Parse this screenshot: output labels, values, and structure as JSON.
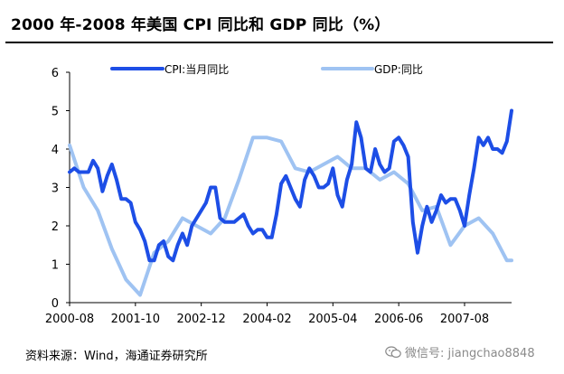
{
  "header": {
    "title": "2000 年-2008 年美国 CPI 同比和 GDP 同比（%）"
  },
  "footer": {
    "source": "资料来源：Wind，海通证券研究所",
    "watermark_text": "微信号: jiangchao8848",
    "watermark_icon": "wechat-icon"
  },
  "chart_data": {
    "type": "line",
    "x_ticks": [
      "2000-08",
      "2001-10",
      "2002-12",
      "2004-02",
      "2005-04",
      "2006-06",
      "2007-08"
    ],
    "y_ticks": [
      "0",
      "1",
      "2",
      "3",
      "4",
      "5",
      "6"
    ],
    "ylim": [
      0,
      6
    ],
    "x_start": "2000-08",
    "x_end": "2008-06",
    "grid": false,
    "legend_position": "top",
    "series": [
      {
        "name": "CPI:当月同比",
        "color": "#1d4ee6",
        "points": [
          [
            "2000-08",
            3.4
          ],
          [
            "2000-09",
            3.5
          ],
          [
            "2000-10",
            3.4
          ],
          [
            "2000-11",
            3.4
          ],
          [
            "2000-12",
            3.4
          ],
          [
            "2001-01",
            3.7
          ],
          [
            "2001-02",
            3.5
          ],
          [
            "2001-03",
            2.9
          ],
          [
            "2001-04",
            3.3
          ],
          [
            "2001-05",
            3.6
          ],
          [
            "2001-06",
            3.2
          ],
          [
            "2001-07",
            2.7
          ],
          [
            "2001-08",
            2.7
          ],
          [
            "2001-09",
            2.6
          ],
          [
            "2001-10",
            2.1
          ],
          [
            "2001-11",
            1.9
          ],
          [
            "2001-12",
            1.6
          ],
          [
            "2002-01",
            1.1
          ],
          [
            "2002-02",
            1.1
          ],
          [
            "2002-03",
            1.5
          ],
          [
            "2002-04",
            1.6
          ],
          [
            "2002-05",
            1.2
          ],
          [
            "2002-06",
            1.1
          ],
          [
            "2002-07",
            1.5
          ],
          [
            "2002-08",
            1.8
          ],
          [
            "2002-09",
            1.5
          ],
          [
            "2002-10",
            2.0
          ],
          [
            "2002-11",
            2.2
          ],
          [
            "2002-12",
            2.4
          ],
          [
            "2003-01",
            2.6
          ],
          [
            "2003-02",
            3.0
          ],
          [
            "2003-03",
            3.0
          ],
          [
            "2003-04",
            2.2
          ],
          [
            "2003-05",
            2.1
          ],
          [
            "2003-06",
            2.1
          ],
          [
            "2003-07",
            2.1
          ],
          [
            "2003-08",
            2.2
          ],
          [
            "2003-09",
            2.3
          ],
          [
            "2003-10",
            2.0
          ],
          [
            "2003-11",
            1.8
          ],
          [
            "2003-12",
            1.9
          ],
          [
            "2004-01",
            1.9
          ],
          [
            "2004-02",
            1.7
          ],
          [
            "2004-03",
            1.7
          ],
          [
            "2004-04",
            2.3
          ],
          [
            "2004-05",
            3.1
          ],
          [
            "2004-06",
            3.3
          ],
          [
            "2004-07",
            3.0
          ],
          [
            "2004-08",
            2.7
          ],
          [
            "2004-09",
            2.5
          ],
          [
            "2004-10",
            3.2
          ],
          [
            "2004-11",
            3.5
          ],
          [
            "2004-12",
            3.3
          ],
          [
            "2005-01",
            3.0
          ],
          [
            "2005-02",
            3.0
          ],
          [
            "2005-03",
            3.1
          ],
          [
            "2005-04",
            3.5
          ],
          [
            "2005-05",
            2.8
          ],
          [
            "2005-06",
            2.5
          ],
          [
            "2005-07",
            3.2
          ],
          [
            "2005-08",
            3.6
          ],
          [
            "2005-09",
            4.7
          ],
          [
            "2005-10",
            4.3
          ],
          [
            "2005-11",
            3.5
          ],
          [
            "2005-12",
            3.4
          ],
          [
            "2006-01",
            4.0
          ],
          [
            "2006-02",
            3.6
          ],
          [
            "2006-03",
            3.4
          ],
          [
            "2006-04",
            3.5
          ],
          [
            "2006-05",
            4.2
          ],
          [
            "2006-06",
            4.3
          ],
          [
            "2006-07",
            4.1
          ],
          [
            "2006-08",
            3.8
          ],
          [
            "2006-09",
            2.1
          ],
          [
            "2006-10",
            1.3
          ],
          [
            "2006-11",
            2.0
          ],
          [
            "2006-12",
            2.5
          ],
          [
            "2007-01",
            2.1
          ],
          [
            "2007-02",
            2.4
          ],
          [
            "2007-03",
            2.8
          ],
          [
            "2007-04",
            2.6
          ],
          [
            "2007-05",
            2.7
          ],
          [
            "2007-06",
            2.7
          ],
          [
            "2007-07",
            2.4
          ],
          [
            "2007-08",
            2.0
          ],
          [
            "2007-09",
            2.8
          ],
          [
            "2007-10",
            3.5
          ],
          [
            "2007-11",
            4.3
          ],
          [
            "2007-12",
            4.1
          ],
          [
            "2008-01",
            4.3
          ],
          [
            "2008-02",
            4.0
          ],
          [
            "2008-03",
            4.0
          ],
          [
            "2008-04",
            3.9
          ],
          [
            "2008-05",
            4.2
          ],
          [
            "2008-06",
            5.0
          ]
        ]
      },
      {
        "name": "GDP:同比",
        "color": "#9fc3f2",
        "points": [
          [
            "2000-08",
            4.1
          ],
          [
            "2000-11",
            3.0
          ],
          [
            "2001-02",
            2.4
          ],
          [
            "2001-05",
            1.4
          ],
          [
            "2001-08",
            0.6
          ],
          [
            "2001-11",
            0.2
          ],
          [
            "2002-02",
            1.3
          ],
          [
            "2002-05",
            1.6
          ],
          [
            "2002-08",
            2.2
          ],
          [
            "2002-11",
            2.0
          ],
          [
            "2003-02",
            1.8
          ],
          [
            "2003-05",
            2.2
          ],
          [
            "2003-08",
            3.2
          ],
          [
            "2003-11",
            4.3
          ],
          [
            "2004-02",
            4.3
          ],
          [
            "2004-05",
            4.2
          ],
          [
            "2004-08",
            3.5
          ],
          [
            "2004-11",
            3.4
          ],
          [
            "2005-02",
            3.6
          ],
          [
            "2005-05",
            3.8
          ],
          [
            "2005-08",
            3.5
          ],
          [
            "2005-11",
            3.5
          ],
          [
            "2006-02",
            3.2
          ],
          [
            "2006-05",
            3.4
          ],
          [
            "2006-08",
            3.1
          ],
          [
            "2006-11",
            2.4
          ],
          [
            "2007-02",
            2.5
          ],
          [
            "2007-05",
            1.5
          ],
          [
            "2007-08",
            2.0
          ],
          [
            "2007-11",
            2.2
          ],
          [
            "2008-02",
            1.8
          ],
          [
            "2008-05",
            1.1
          ],
          [
            "2008-06",
            1.1
          ]
        ]
      }
    ]
  }
}
